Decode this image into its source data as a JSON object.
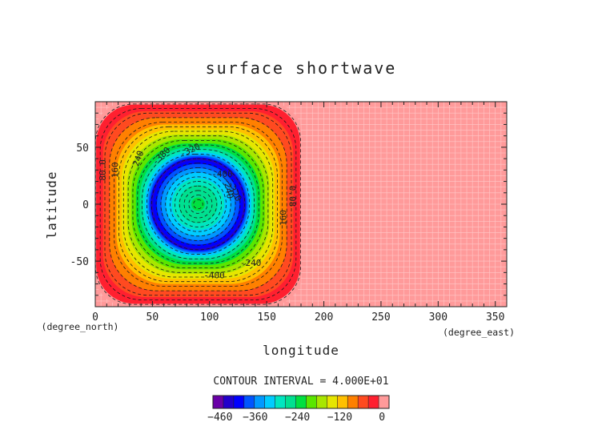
{
  "chart_data": {
    "type": "heatmap",
    "title": "surface shortwave",
    "xlabel": "longitude",
    "ylabel": "latitude",
    "x_units": "(degree_east)",
    "y_units": "(degree_north)",
    "xlim": [
      0,
      360
    ],
    "ylim": [
      -90,
      90
    ],
    "x_ticks": [
      0,
      50,
      100,
      150,
      200,
      250,
      300,
      350
    ],
    "y_ticks": [
      -50,
      0,
      50
    ],
    "field": {
      "description_of_pattern": "rounded-square patch over lon 0-180, lat -90..90; zero (pink) elsewhere",
      "patch_lon_range": [
        0,
        180
      ],
      "center": [
        90,
        0
      ],
      "center_value": -240,
      "ring_min_value": -440,
      "ring_min_radius_deg": 41,
      "edge_value": 0
    },
    "contour_interval_label": "CONTOUR INTERVAL = 4.000E+01",
    "contour_interval": 40,
    "colorbar": {
      "colors": [
        "#6a00a8",
        "#2200cc",
        "#0000ff",
        "#0055ff",
        "#0099ff",
        "#00ccff",
        "#00e6c0",
        "#00e090",
        "#00e040",
        "#5ae600",
        "#a8e600",
        "#e6e600",
        "#ffc000",
        "#ff8000",
        "#ff4a20",
        "#ff2030",
        "#ff9a9a"
      ],
      "tick_labels": [
        "−460",
        "−360",
        "−240",
        "−120",
        "0"
      ],
      "tick_values": [
        -460,
        -360,
        -240,
        -120,
        0
      ],
      "range": [
        -480,
        20
      ]
    },
    "contour_labels": [
      {
        "text": "80.0",
        "lon": 7,
        "lat": 30,
        "angle": -90
      },
      {
        "text": "160",
        "lon": 18,
        "lat": 30,
        "angle": -90
      },
      {
        "text": "240",
        "lon": 38,
        "lat": 40,
        "angle": -70
      },
      {
        "text": "-380",
        "lon": 58,
        "lat": 42,
        "angle": -45
      },
      {
        "text": "-320",
        "lon": 83,
        "lat": 47,
        "angle": -25
      },
      {
        "text": "-400",
        "lon": 111,
        "lat": 26,
        "angle": 0
      },
      {
        "text": "-320",
        "lon": 121,
        "lat": 11,
        "angle": 60
      },
      {
        "text": "-240",
        "lon": 116,
        "lat": 14,
        "angle": 80
      },
      {
        "text": "0.08",
        "lon": 172,
        "lat": 7,
        "angle": 90
      },
      {
        "text": "160",
        "lon": 165,
        "lat": -12,
        "angle": -90
      },
      {
        "text": "-400",
        "lon": 104,
        "lat": -63,
        "angle": 0
      },
      {
        "text": "-240",
        "lon": 136,
        "lat": -52,
        "angle": 0
      }
    ]
  }
}
